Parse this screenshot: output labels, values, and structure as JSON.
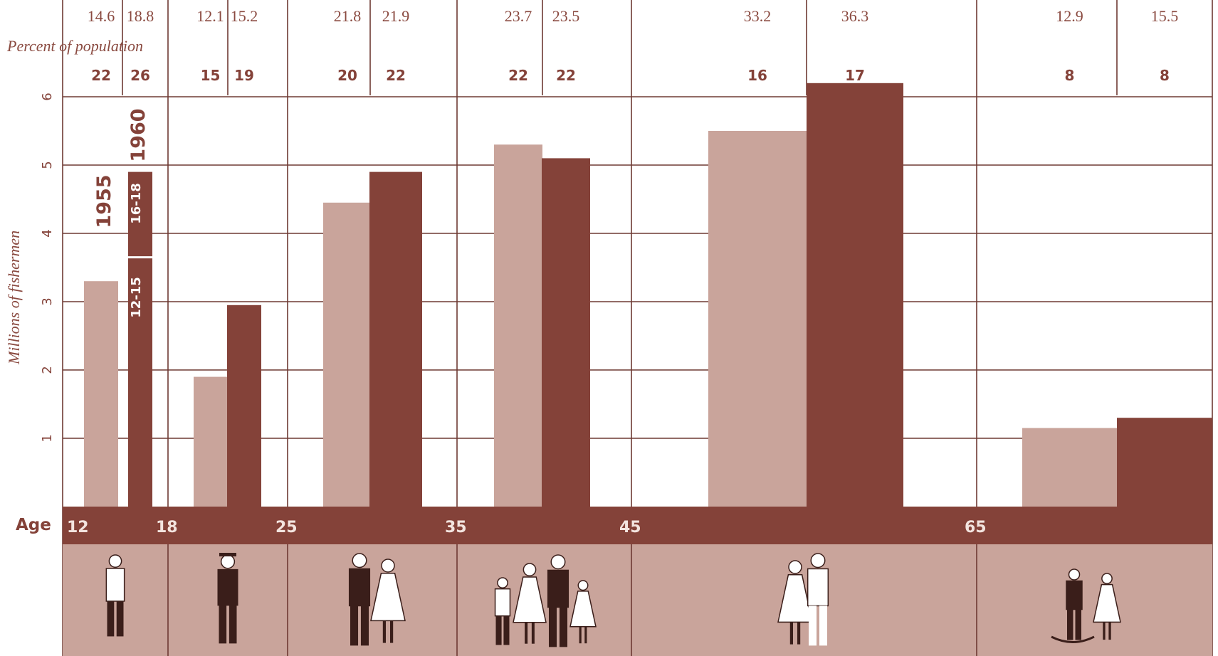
{
  "chart_data": {
    "type": "bar",
    "ylabel": "Millions of fishermen",
    "ylim": [
      0,
      6.5
    ],
    "yticks": [
      "1",
      "2",
      "3",
      "4",
      "5",
      "6"
    ],
    "percent_title": "Percent of population",
    "age_label": "Age",
    "age_ticks": [
      "12",
      "18",
      "25",
      "35",
      "45",
      "65"
    ],
    "series": [
      {
        "name": "1955",
        "color": "#c9a49b"
      },
      {
        "name": "1960",
        "color": "#844239"
      }
    ],
    "first_group_sublabels": [
      "16-18",
      "12-15"
    ],
    "groups": [
      {
        "icon": "boy-icon",
        "bars": [
          {
            "value": 3.3,
            "top_number": "14.6",
            "percent": "22"
          },
          {
            "value": 4.9,
            "top_number": "18.8",
            "percent": "26",
            "split_at": 3.65
          }
        ]
      },
      {
        "icon": "graduate-icon",
        "bars": [
          {
            "value": 1.9,
            "top_number": "12.1",
            "percent": "15"
          },
          {
            "value": 2.95,
            "top_number": "15.2",
            "percent": "19"
          }
        ]
      },
      {
        "icon": "wedding-couple-icon",
        "bars": [
          {
            "value": 4.45,
            "top_number": "21.8",
            "percent": "20"
          },
          {
            "value": 4.9,
            "top_number": "21.9",
            "percent": "22"
          }
        ]
      },
      {
        "icon": "family-icon",
        "bars": [
          {
            "value": 5.3,
            "top_number": "23.7",
            "percent": "22"
          },
          {
            "value": 5.1,
            "top_number": "23.5",
            "percent": "22"
          }
        ]
      },
      {
        "icon": "middle-aged-couple-icon",
        "bars": [
          {
            "value": 5.5,
            "top_number": "33.2",
            "percent": "16"
          },
          {
            "value": 6.2,
            "top_number": "36.3",
            "percent": "17"
          }
        ]
      },
      {
        "icon": "elderly-couple-rocking-chair-icon",
        "bars": [
          {
            "value": 1.15,
            "top_number": "12.9",
            "percent": "8"
          },
          {
            "value": 1.3,
            "top_number": "15.5",
            "percent": "8"
          }
        ]
      }
    ]
  }
}
